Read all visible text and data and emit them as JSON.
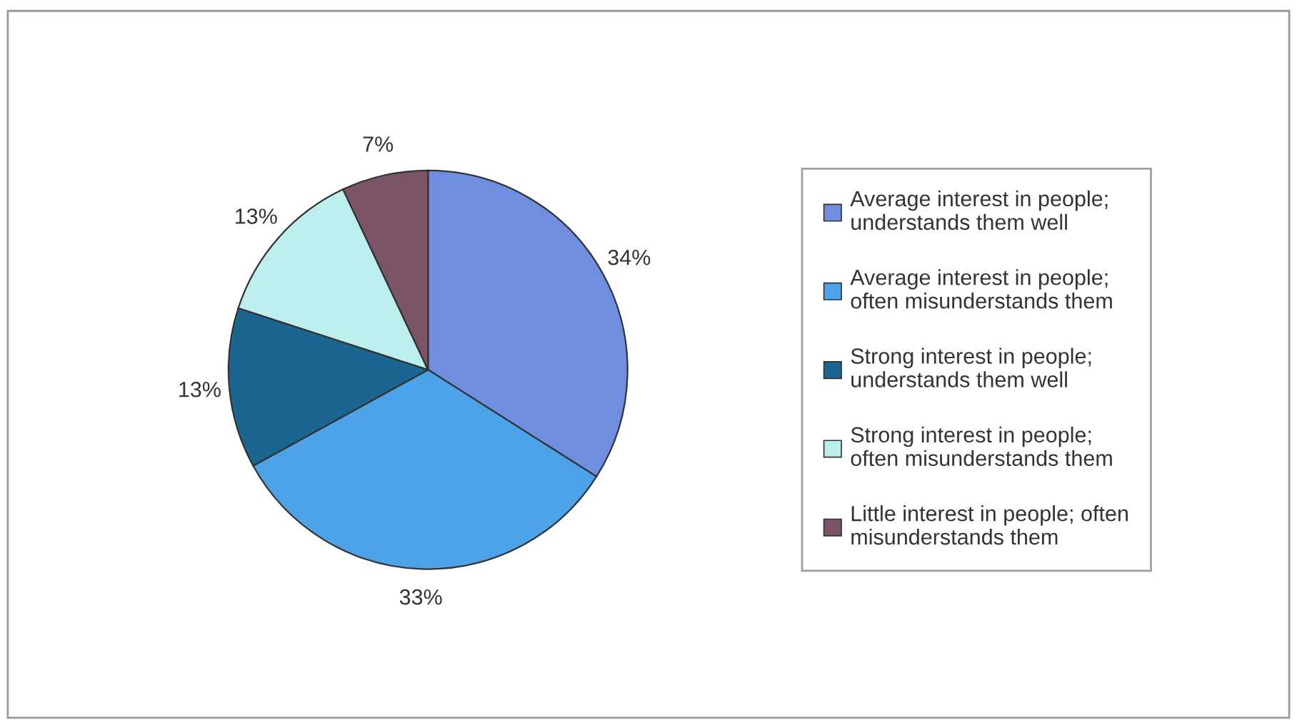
{
  "chart_data": {
    "type": "pie",
    "categories": [
      "Average interest in people;\nunderstands them well",
      "Average interest in people;\noften misunderstands them",
      "Strong interest in people;\nunderstands them well",
      "Strong interest in people;\noften misunderstands them",
      "Little interest in people; often\nmisunderstands them"
    ],
    "values": [
      34,
      33,
      13,
      13,
      7
    ],
    "value_labels": [
      "34%",
      "33%",
      "13%",
      "13%",
      "7%"
    ],
    "colors": [
      "#6f8ee0",
      "#4da3e8",
      "#1b6690",
      "#bdeeee",
      "#7b5468"
    ],
    "legend": "right"
  }
}
